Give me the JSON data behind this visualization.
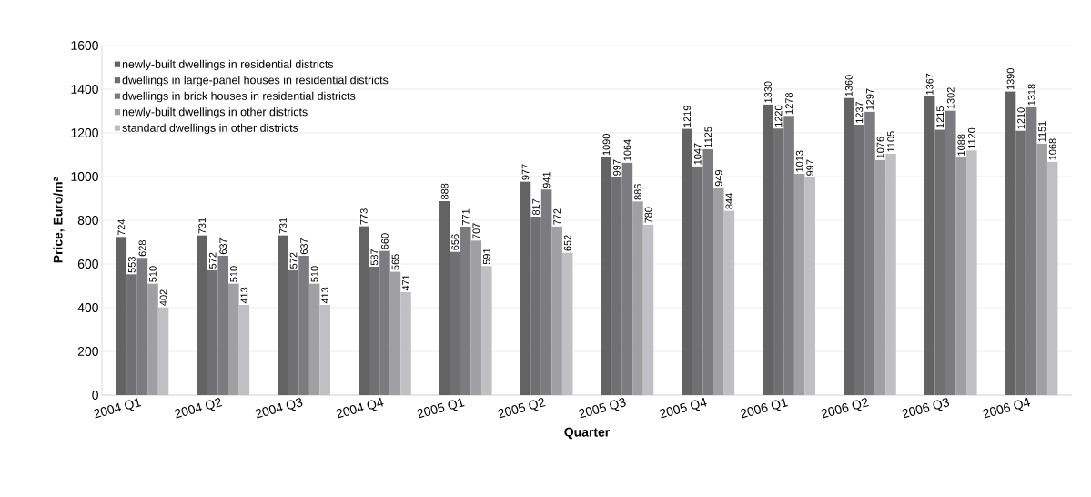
{
  "chart_data": {
    "type": "bar",
    "xlabel": "Quarter",
    "ylabel": "Price, Euro/m²",
    "categories": [
      "2004 Q1",
      "2004 Q2",
      "2004 Q3",
      "2004 Q4",
      "2005 Q1",
      "2005 Q2",
      "2005 Q3",
      "2005 Q4",
      "2006 Q1",
      "2006 Q2",
      "2006 Q3",
      "2006 Q4"
    ],
    "series": [
      {
        "name": "newly-built dwellings in residential districts",
        "color": "#636363",
        "values": [
          724,
          731,
          731,
          773,
          888,
          977,
          1090,
          1219,
          1330,
          1360,
          1367,
          1390
        ]
      },
      {
        "name": "dwellings in large-panel houses in residential districts",
        "color": "#707072",
        "values": [
          553,
          572,
          572,
          587,
          656,
          817,
          997,
          1047,
          1220,
          1237,
          1215,
          1210
        ]
      },
      {
        "name": "dwellings in brick houses in residential districts",
        "color": "#7c7c80",
        "values": [
          628,
          637,
          637,
          660,
          771,
          941,
          1064,
          1125,
          1278,
          1297,
          1302,
          1318
        ]
      },
      {
        "name": "newly-built dwellings in other districts",
        "color": "#a0a0a3",
        "values": [
          510,
          510,
          510,
          565,
          707,
          772,
          886,
          949,
          1013,
          1076,
          1088,
          1151
        ]
      },
      {
        "name": "standard dwellings in other districts",
        "color": "#c0c0c4",
        "values": [
          402,
          413,
          413,
          471,
          591,
          652,
          780,
          844,
          997,
          1105,
          1120,
          1068
        ]
      }
    ],
    "ylim": [
      0,
      1600
    ],
    "yticks": [
      0,
      200,
      400,
      600,
      800,
      1000,
      1200,
      1400,
      1600
    ],
    "grid": "y",
    "legend": "top left",
    "data_labels": true
  }
}
